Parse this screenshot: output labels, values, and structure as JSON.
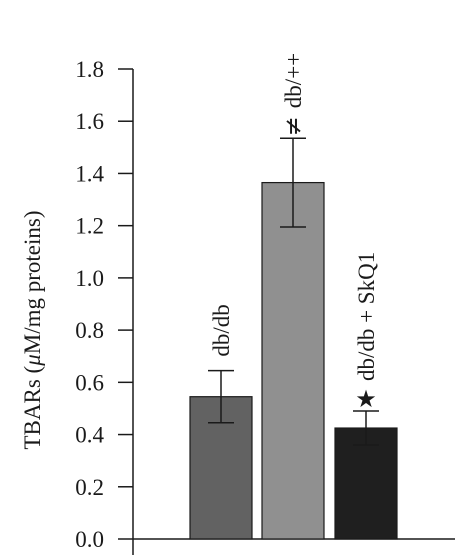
{
  "chart_data": {
    "type": "bar",
    "categories": [
      "db/db",
      "db/++",
      "db/db + SkQ1"
    ],
    "values": [
      0.545,
      1.365,
      0.425
    ],
    "errors": [
      0.1,
      0.17,
      0.065
    ],
    "bar_colors": [
      "#626262",
      "#909090",
      "#1f1f1f"
    ],
    "significance_markers": [
      "",
      "≠",
      "★"
    ],
    "ylabel_prefix": "TBARs (",
    "ylabel_mu": "μ",
    "ylabel_suffix": "M/mg proteins)",
    "ylim": [
      0.0,
      1.8
    ],
    "yticks": [
      "0.0",
      "0.2",
      "0.4",
      "0.6",
      "0.8",
      "1.0",
      "1.2",
      "1.4",
      "1.6",
      "1.8"
    ],
    "grid": false
  }
}
